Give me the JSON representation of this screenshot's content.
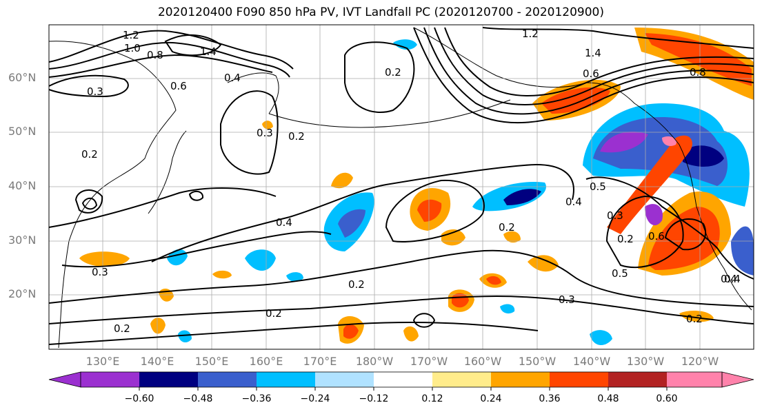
{
  "title": "2020120400 F090 850 hPa PV, IVT Landfall PC (2020120700 - 2020120900)",
  "map": {
    "type": "contour-map",
    "projection": "plate-carree",
    "lat_ticks": [
      "60°N",
      "50°N",
      "40°N",
      "30°N",
      "20°N"
    ],
    "lon_ticks": [
      "130°E",
      "140°E",
      "150°E",
      "160°E",
      "170°E",
      "180°W",
      "170°W",
      "160°W",
      "150°W",
      "140°W",
      "130°W",
      "120°W"
    ],
    "contour_labels": [
      "1.2",
      "1.0",
      "0.8",
      "1.4",
      "0.3",
      "0.6",
      "0.4",
      "0.2",
      "0.2",
      "0.3",
      "0.2",
      "1.2",
      "1.4",
      "0.6",
      "0.8",
      "0.4",
      "0.4",
      "0.4",
      "0.5",
      "0.3",
      "0.2",
      "0.6",
      "0.5",
      "0.2",
      "0.3",
      "0.2",
      "0.2",
      "0.2",
      "0.4",
      "0.3",
      "0.2"
    ],
    "grid": true,
    "contour_color": "#000000"
  },
  "colorbar": {
    "ticks": [
      "−0.60",
      "−0.48",
      "−0.36",
      "−0.24",
      "−0.12",
      "0.12",
      "0.24",
      "0.36",
      "0.48",
      "0.60"
    ],
    "colors": [
      "#9b30d0",
      "#000080",
      "#3a5fcd",
      "#00bfff",
      "#b0e2ff",
      "#ffffff",
      "#ffec8b",
      "#ffa500",
      "#ff4500",
      "#b22222",
      "#ff82ab"
    ]
  }
}
